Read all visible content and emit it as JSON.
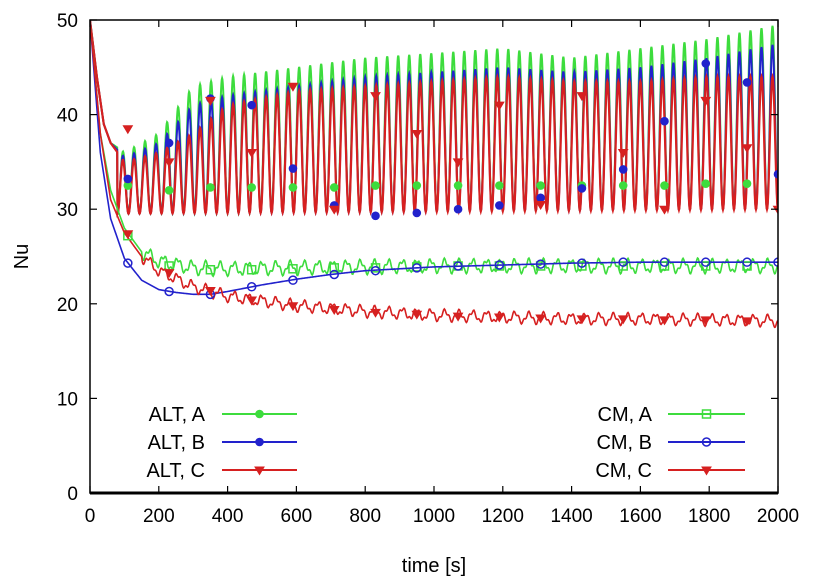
{
  "chart_data": {
    "type": "line",
    "xlabel": "time [s]",
    "ylabel": "Nu",
    "xlim": [
      0,
      2000
    ],
    "ylim": [
      0,
      50
    ],
    "xticks": [
      0,
      200,
      400,
      600,
      800,
      1000,
      1200,
      1400,
      1600,
      1800,
      2000
    ],
    "yticks": [
      0,
      10,
      20,
      30,
      40,
      50
    ],
    "grid": false,
    "legend_placement": "bottom (two columns: left and right)",
    "series": [
      {
        "name": "ALT, A",
        "color": "#3ddc3d",
        "marker": "filled-circle",
        "oscillation": {
          "period_s": 32,
          "low_start": 29.5,
          "low_end": 30.0,
          "high_start": 40.0,
          "high_end": 49.5
        },
        "points": [
          [
            0,
            50
          ],
          [
            20,
            44
          ],
          [
            40,
            39
          ],
          [
            60,
            37
          ],
          [
            100,
            36
          ],
          [
            200,
            38
          ],
          [
            300,
            43
          ],
          [
            400,
            44
          ],
          [
            600,
            45
          ],
          [
            800,
            46
          ],
          [
            1000,
            46.5
          ],
          [
            1200,
            47
          ],
          [
            1400,
            46
          ],
          [
            1600,
            47
          ],
          [
            1800,
            48
          ],
          [
            2000,
            49.5
          ]
        ],
        "marker_points": [
          [
            110,
            32.5
          ],
          [
            230,
            32.0
          ],
          [
            350,
            32.3
          ],
          [
            470,
            32.3
          ],
          [
            590,
            32.3
          ],
          [
            710,
            32.3
          ],
          [
            830,
            32.5
          ],
          [
            950,
            32.5
          ],
          [
            1070,
            32.5
          ],
          [
            1190,
            32.5
          ],
          [
            1310,
            32.5
          ],
          [
            1430,
            32.5
          ],
          [
            1550,
            32.5
          ],
          [
            1670,
            32.5
          ],
          [
            1790,
            32.7
          ],
          [
            1910,
            32.7
          ]
        ]
      },
      {
        "name": "ALT, B",
        "color": "#2222cc",
        "marker": "filled-circle",
        "marker_points": [
          [
            110,
            33.2
          ],
          [
            230,
            37.0
          ],
          [
            350,
            41.7
          ],
          [
            470,
            41.0
          ],
          [
            590,
            34.3
          ],
          [
            710,
            30.4
          ],
          [
            830,
            29.3
          ],
          [
            950,
            29.6
          ],
          [
            1070,
            30.0
          ],
          [
            1190,
            30.4
          ],
          [
            1310,
            31.2
          ],
          [
            1430,
            32.2
          ],
          [
            1550,
            34.2
          ],
          [
            1670,
            39.3
          ],
          [
            1790,
            45.4
          ],
          [
            1910,
            43.4
          ],
          [
            2000,
            33.7
          ]
        ],
        "points": [
          [
            0,
            50
          ],
          [
            20,
            44
          ],
          [
            40,
            39
          ],
          [
            60,
            37
          ],
          [
            100,
            35.5
          ],
          [
            200,
            37
          ],
          [
            300,
            41
          ],
          [
            400,
            42
          ],
          [
            600,
            43
          ],
          [
            800,
            44
          ],
          [
            1000,
            44.5
          ],
          [
            1200,
            45
          ],
          [
            1400,
            44.5
          ],
          [
            1600,
            45
          ],
          [
            1800,
            46
          ],
          [
            2000,
            47.5
          ]
        ]
      },
      {
        "name": "ALT, C",
        "color": "#d62020",
        "marker": "filled-triangle-down",
        "points": [
          [
            0,
            50
          ],
          [
            20,
            44
          ],
          [
            40,
            39
          ],
          [
            60,
            37
          ],
          [
            100,
            35
          ],
          [
            200,
            36
          ],
          [
            300,
            38
          ],
          [
            400,
            41
          ],
          [
            600,
            42.5
          ],
          [
            800,
            43
          ],
          [
            1000,
            43.5
          ],
          [
            1200,
            44
          ],
          [
            1400,
            43.5
          ],
          [
            1600,
            43.5
          ],
          [
            1800,
            44
          ],
          [
            2000,
            44
          ]
        ],
        "marker_points": [
          [
            110,
            38.5
          ],
          [
            230,
            35.0
          ],
          [
            350,
            41.5
          ],
          [
            470,
            36.0
          ],
          [
            590,
            43.0
          ],
          [
            710,
            30.0
          ],
          [
            830,
            42.0
          ],
          [
            950,
            38.0
          ],
          [
            1070,
            35.0
          ],
          [
            1190,
            41.0
          ],
          [
            1310,
            30.5
          ],
          [
            1430,
            42.0
          ],
          [
            1550,
            36.0
          ],
          [
            1670,
            30.0
          ],
          [
            1790,
            41.5
          ],
          [
            1910,
            36.5
          ],
          [
            2000,
            30.0
          ]
        ]
      },
      {
        "name": "CM, A",
        "color": "#3ddc3d",
        "marker": "open-square",
        "points": [
          [
            0,
            50
          ],
          [
            30,
            38
          ],
          [
            60,
            32
          ],
          [
            100,
            28
          ],
          [
            150,
            25.5
          ],
          [
            200,
            24.5
          ],
          [
            300,
            23.8
          ],
          [
            400,
            23.7
          ],
          [
            600,
            23.8
          ],
          [
            800,
            23.9
          ],
          [
            1000,
            24.0
          ],
          [
            1200,
            24.0
          ],
          [
            1400,
            24.0
          ],
          [
            1600,
            24.0
          ],
          [
            1800,
            24.0
          ],
          [
            2000,
            24.0
          ]
        ],
        "marker_points": [
          [
            110,
            27.2
          ],
          [
            230,
            24.0
          ],
          [
            350,
            23.6
          ],
          [
            470,
            23.6
          ],
          [
            590,
            23.7
          ],
          [
            710,
            23.8
          ],
          [
            830,
            23.8
          ],
          [
            950,
            23.9
          ],
          [
            1070,
            24.0
          ],
          [
            1190,
            24.0
          ],
          [
            1310,
            24.0
          ],
          [
            1430,
            24.0
          ],
          [
            1550,
            24.0
          ],
          [
            1670,
            24.0
          ],
          [
            1790,
            24.0
          ],
          [
            1910,
            24.0
          ]
        ]
      },
      {
        "name": "CM, B",
        "color": "#2222cc",
        "marker": "open-circle",
        "points": [
          [
            0,
            50
          ],
          [
            30,
            36
          ],
          [
            60,
            29
          ],
          [
            100,
            24.8
          ],
          [
            150,
            22.5
          ],
          [
            200,
            21.5
          ],
          [
            250,
            21.2
          ],
          [
            300,
            21.0
          ],
          [
            350,
            21.0
          ],
          [
            400,
            21.3
          ],
          [
            500,
            22.0
          ],
          [
            600,
            22.6
          ],
          [
            700,
            23.1
          ],
          [
            800,
            23.5
          ],
          [
            900,
            23.7
          ],
          [
            1000,
            23.9
          ],
          [
            1200,
            24.1
          ],
          [
            1400,
            24.3
          ],
          [
            1600,
            24.4
          ],
          [
            1800,
            24.4
          ],
          [
            2000,
            24.4
          ]
        ],
        "marker_points": [
          [
            110,
            24.3
          ],
          [
            230,
            21.3
          ],
          [
            350,
            21.0
          ],
          [
            470,
            21.8
          ],
          [
            590,
            22.5
          ],
          [
            710,
            23.1
          ],
          [
            830,
            23.5
          ],
          [
            950,
            23.8
          ],
          [
            1070,
            24.0
          ],
          [
            1190,
            24.1
          ],
          [
            1310,
            24.2
          ],
          [
            1430,
            24.3
          ],
          [
            1550,
            24.4
          ],
          [
            1670,
            24.4
          ],
          [
            1790,
            24.4
          ],
          [
            1910,
            24.4
          ],
          [
            2000,
            24.4
          ]
        ]
      },
      {
        "name": "CM, C",
        "color": "#d62020",
        "marker": "filled-triangle-down",
        "points": [
          [
            0,
            50
          ],
          [
            30,
            38
          ],
          [
            60,
            31
          ],
          [
            100,
            27.5
          ],
          [
            150,
            25.0
          ],
          [
            200,
            23.5
          ],
          [
            300,
            21.8
          ],
          [
            400,
            20.8
          ],
          [
            600,
            19.8
          ],
          [
            800,
            19.2
          ],
          [
            1000,
            18.8
          ],
          [
            1200,
            18.6
          ],
          [
            1400,
            18.4
          ],
          [
            1600,
            18.4
          ],
          [
            1800,
            18.3
          ],
          [
            2000,
            18.2
          ]
        ],
        "marker_points": [
          [
            110,
            27.4
          ],
          [
            230,
            23.3
          ],
          [
            350,
            21.4
          ],
          [
            470,
            20.4
          ],
          [
            590,
            19.8
          ],
          [
            710,
            19.4
          ],
          [
            830,
            19.1
          ],
          [
            950,
            18.9
          ],
          [
            1070,
            18.7
          ],
          [
            1190,
            18.6
          ],
          [
            1310,
            18.5
          ],
          [
            1430,
            18.4
          ],
          [
            1550,
            18.4
          ],
          [
            1670,
            18.3
          ],
          [
            1790,
            18.3
          ],
          [
            1910,
            18.2
          ]
        ]
      }
    ]
  }
}
